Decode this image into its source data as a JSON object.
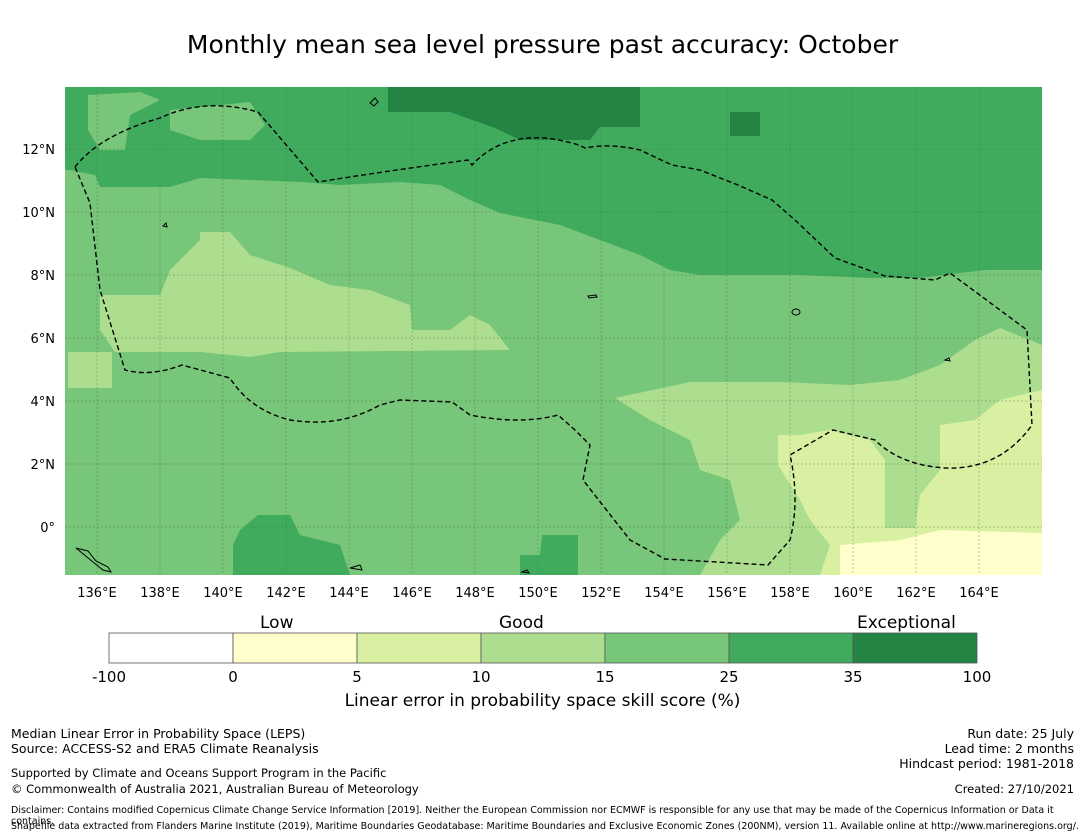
{
  "title": "Monthly mean sea level pressure past accuracy: October",
  "map": {
    "lon_range": [
      135,
      166
    ],
    "lat_range": [
      -1.5,
      14
    ],
    "lon_ticks": [
      "136°E",
      "138°E",
      "140°E",
      "142°E",
      "144°E",
      "146°E",
      "148°E",
      "150°E",
      "152°E",
      "154°E",
      "156°E",
      "158°E",
      "160°E",
      "162°E",
      "164°E"
    ],
    "lat_ticks": [
      "12°N",
      "10°N",
      "8°N",
      "6°N",
      "4°N",
      "2°N",
      "0°"
    ],
    "region_boundary": "dashed"
  },
  "legend": {
    "categories": [
      "Low",
      "Good",
      "Exceptional"
    ],
    "bins": [
      {
        "from": "-100",
        "to": "0",
        "color": "#ffffff"
      },
      {
        "from": "0",
        "to": "5",
        "color": "#ffffcc"
      },
      {
        "from": "5",
        "to": "10",
        "color": "#d9f0a3"
      },
      {
        "from": "10",
        "to": "15",
        "color": "#addd8e"
      },
      {
        "from": "15",
        "to": "25",
        "color": "#78c679"
      },
      {
        "from": "25",
        "to": "35",
        "color": "#41ab5d"
      },
      {
        "from": "35",
        "to": "100",
        "color": "#238443"
      }
    ],
    "tick_labels": [
      "-100",
      "0",
      "5",
      "10",
      "15",
      "25",
      "35",
      "100"
    ],
    "title": "Linear error in probability space skill score (%)"
  },
  "footer": {
    "left": [
      "Median Linear Error in Probability Space (LEPS)",
      "Source: ACCESS-S2 and ERA5 Climate Reanalysis",
      "Supported by Climate and Oceans Support Program in the Pacific",
      "© Commonwealth of Australia 2021, Australian Bureau of Meteorology"
    ],
    "right": [
      "Run date: 25 July",
      "Lead time: 2 months",
      "Hindcast period: 1981-2018",
      "Created: 27/10/2021"
    ],
    "disclaimer": [
      "Disclaimer: Contains modified Copernicus Climate Change Service Information [2019]. Neither the European Commission nor ECMWF is responsible for any use that may be made of the Copernicus Information or Data it contains.",
      "Shapefile data extracted from Flanders Marine Institute (2019), Maritime Boundaries Geodatabase: Maritime Boundaries and Exclusive Economic Zones (200NM), version 11. Available online at http://www.marineregions.org/."
    ]
  }
}
